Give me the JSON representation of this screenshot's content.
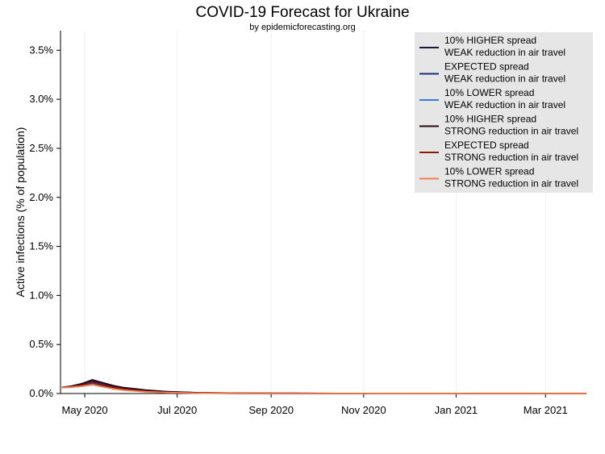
{
  "chart_data": {
    "type": "line",
    "title": "COVID-19 Forecast for Ukraine",
    "subtitle": "by epidemicforecasting.org",
    "ylabel": "Active infections (% of population)",
    "xlabel": "",
    "ylim": [
      0,
      3.7
    ],
    "xlim": [
      "2020-04-15",
      "2021-03-28"
    ],
    "y_ticks": [
      0,
      0.5,
      1.0,
      1.5,
      2.0,
      2.5,
      3.0,
      3.5
    ],
    "y_tick_labels": [
      "0.0%",
      "0.5%",
      "1.0%",
      "1.5%",
      "2.0%",
      "2.5%",
      "3.0%",
      "3.5%"
    ],
    "x_ticks": [
      "2020-05-01",
      "2020-07-01",
      "2020-09-01",
      "2020-11-01",
      "2021-01-01",
      "2021-03-01"
    ],
    "x_tick_labels": [
      "May 2020",
      "Jul 2020",
      "Sep 2020",
      "Nov 2020",
      "Jan 2021",
      "Mar 2021"
    ],
    "grid": "vertical",
    "legend_position": "top-right",
    "x": [
      "2020-04-15",
      "2020-04-22",
      "2020-04-29",
      "2020-05-06",
      "2020-05-13",
      "2020-05-20",
      "2020-05-27",
      "2020-06-10",
      "2020-06-24",
      "2020-07-15",
      "2020-08-15",
      "2020-10-15",
      "2021-01-15",
      "2021-03-28"
    ],
    "series": [
      {
        "name": "10% HIGHER spread\nWEAK reduction in air travel",
        "color": "#1a1a3a",
        "values": [
          0.06,
          0.075,
          0.1,
          0.14,
          0.11,
          0.08,
          0.06,
          0.035,
          0.02,
          0.008,
          0.003,
          0.001,
          0.0005,
          0.0002
        ]
      },
      {
        "name": "EXPECTED spread\nWEAK reduction in air travel",
        "color": "#1e2a7a",
        "values": [
          0.06,
          0.07,
          0.09,
          0.12,
          0.09,
          0.065,
          0.048,
          0.027,
          0.015,
          0.006,
          0.002,
          0.001,
          0.0004,
          0.0002
        ]
      },
      {
        "name": "10% LOWER spread\nWEAK reduction in air travel",
        "color": "#3a7ad9",
        "values": [
          0.06,
          0.066,
          0.08,
          0.1,
          0.075,
          0.052,
          0.038,
          0.02,
          0.011,
          0.004,
          0.0015,
          0.0008,
          0.0003,
          0.0001
        ]
      },
      {
        "name": "10% HIGHER spread\nSTRONG reduction in air travel",
        "color": "#2a0a0a",
        "values": [
          0.06,
          0.074,
          0.098,
          0.135,
          0.105,
          0.077,
          0.057,
          0.033,
          0.019,
          0.007,
          0.003,
          0.001,
          0.0005,
          0.0002
        ]
      },
      {
        "name": "EXPECTED spread\nSTRONG reduction in air travel",
        "color": "#8b1a0e",
        "values": [
          0.06,
          0.068,
          0.085,
          0.11,
          0.083,
          0.06,
          0.044,
          0.024,
          0.013,
          0.005,
          0.002,
          0.001,
          0.0004,
          0.0002
        ]
      },
      {
        "name": "10% LOWER spread\nSTRONG reduction in air travel",
        "color": "#f07c4e",
        "values": [
          0.06,
          0.064,
          0.074,
          0.09,
          0.068,
          0.047,
          0.034,
          0.018,
          0.01,
          0.004,
          0.0015,
          0.0007,
          0.0003,
          0.0001
        ]
      }
    ]
  }
}
